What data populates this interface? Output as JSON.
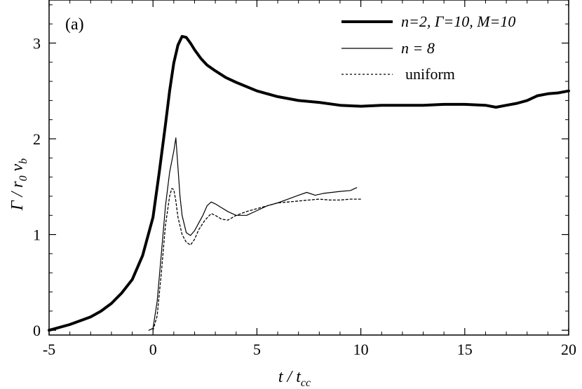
{
  "chart_data": {
    "type": "line",
    "panel_label": "(a)",
    "xlabel": {
      "main": "t / t",
      "sub": "cc"
    },
    "ylabel": {
      "part1": "Γ / r",
      "sub1": "0",
      "part2": " v",
      "sub2": "b"
    },
    "xlim": [
      -5,
      20
    ],
    "ylim": [
      -0.05,
      3.45
    ],
    "xticks": [
      -5,
      0,
      5,
      10,
      15,
      20
    ],
    "xtick_labels": [
      "-5",
      "0",
      "5",
      "10",
      "15",
      "20"
    ],
    "yticks": [
      0,
      1,
      2,
      3
    ],
    "ytick_labels": [
      "0",
      "1",
      "2",
      "3"
    ],
    "grid": false,
    "legend_position": "top-right",
    "series": [
      {
        "name": "n=2, Γ=10, M=10",
        "style": "thick",
        "color": "#000000",
        "x": [
          -5,
          -4,
          -3,
          -2.5,
          -2,
          -1.5,
          -1,
          -0.5,
          0,
          0.3,
          0.6,
          0.8,
          1.0,
          1.2,
          1.4,
          1.6,
          1.8,
          2.0,
          2.3,
          2.6,
          3.0,
          3.5,
          4.0,
          5.0,
          6.0,
          7.0,
          8.0,
          9.0,
          10.0,
          11.0,
          12.0,
          13.0,
          14.0,
          15.0,
          16.0,
          16.5,
          17.0,
          17.5,
          18.0,
          18.5,
          19.0,
          19.5,
          20.0
        ],
        "y": [
          0.0,
          0.06,
          0.14,
          0.2,
          0.28,
          0.39,
          0.53,
          0.78,
          1.18,
          1.65,
          2.15,
          2.5,
          2.79,
          2.98,
          3.07,
          3.06,
          3.0,
          2.93,
          2.84,
          2.77,
          2.71,
          2.64,
          2.59,
          2.5,
          2.44,
          2.4,
          2.38,
          2.35,
          2.34,
          2.35,
          2.35,
          2.35,
          2.36,
          2.36,
          2.35,
          2.33,
          2.35,
          2.37,
          2.4,
          2.45,
          2.47,
          2.48,
          2.5
        ]
      },
      {
        "name": "n = 8",
        "style": "thin",
        "color": "#000000",
        "x": [
          -0.2,
          0.0,
          0.2,
          0.4,
          0.6,
          0.8,
          1.0,
          1.1,
          1.2,
          1.3,
          1.4,
          1.6,
          1.8,
          2.0,
          2.2,
          2.4,
          2.6,
          2.8,
          3.0,
          3.3,
          3.6,
          4.0,
          4.5,
          5.0,
          5.5,
          6.0,
          6.5,
          7.0,
          7.4,
          7.8,
          8.2,
          8.6,
          9.0,
          9.5,
          9.8
        ],
        "y": [
          0.0,
          0.02,
          0.3,
          0.8,
          1.3,
          1.65,
          1.87,
          2.01,
          1.7,
          1.4,
          1.2,
          1.02,
          0.99,
          1.04,
          1.12,
          1.2,
          1.3,
          1.34,
          1.32,
          1.28,
          1.24,
          1.2,
          1.2,
          1.25,
          1.3,
          1.33,
          1.37,
          1.41,
          1.44,
          1.41,
          1.43,
          1.44,
          1.45,
          1.46,
          1.49
        ]
      },
      {
        "name": "uniform",
        "style": "dotted",
        "color": "#000000",
        "x": [
          0.0,
          0.2,
          0.4,
          0.6,
          0.8,
          0.9,
          1.0,
          1.1,
          1.2,
          1.4,
          1.6,
          1.8,
          2.0,
          2.2,
          2.5,
          2.8,
          3.0,
          3.3,
          3.6,
          4.0,
          4.5,
          5.0,
          5.5,
          6.0,
          6.5,
          7.0,
          7.5,
          8.0,
          8.5,
          9.0,
          9.5,
          10.0
        ],
        "y": [
          0.0,
          0.15,
          0.6,
          1.1,
          1.4,
          1.48,
          1.47,
          1.35,
          1.18,
          1.0,
          0.92,
          0.89,
          0.95,
          1.05,
          1.15,
          1.22,
          1.2,
          1.16,
          1.15,
          1.2,
          1.24,
          1.27,
          1.3,
          1.33,
          1.34,
          1.35,
          1.36,
          1.37,
          1.36,
          1.36,
          1.37,
          1.37
        ]
      }
    ]
  }
}
